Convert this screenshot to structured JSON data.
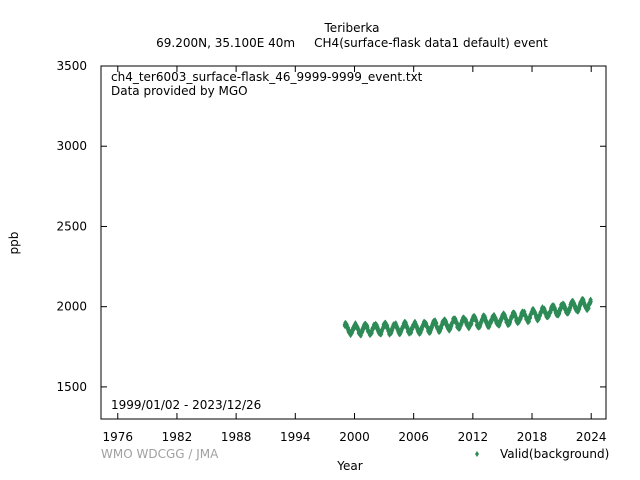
{
  "chart_data": {
    "type": "scatter",
    "title": "Teriberka",
    "subtitle": "69.200N, 35.100E 40m     CH4(surface-flask data1 default) event",
    "xlabel": "Year",
    "ylabel": "ppb",
    "xlim": [
      1974.3,
      2025.5
    ],
    "ylim": [
      1300,
      3500
    ],
    "x_ticks": [
      1976,
      1982,
      1988,
      1994,
      2000,
      2006,
      2012,
      2018,
      2024
    ],
    "y_ticks": [
      1500,
      2000,
      2500,
      3000,
      3500
    ],
    "annotations": {
      "filename": "ch4_ter6003_surface-flask_46_9999-9999_event.txt",
      "provider": "Data provided by MGO",
      "date_range": "1999/01/02 - 2023/12/26"
    },
    "watermark": "WMO WDCGG / JMA",
    "legend_position": "bottom-right",
    "series": [
      {
        "name": "Valid(background)",
        "color": "#2e8b57",
        "marker": "diamond",
        "trend": {
          "x": [
            1999.0,
            2001.0,
            2003.0,
            2005.0,
            2007.0,
            2008.0,
            2010.0,
            2012.0,
            2014.0,
            2016.0,
            2018.0,
            2020.0,
            2022.0,
            2023.99
          ],
          "y": [
            1860,
            1858,
            1862,
            1866,
            1870,
            1878,
            1892,
            1904,
            1912,
            1926,
            1946,
            1972,
            1998,
            2022
          ]
        },
        "seasonal_amplitude_ppb": 28,
        "scatter_ppb": 12
      }
    ]
  }
}
